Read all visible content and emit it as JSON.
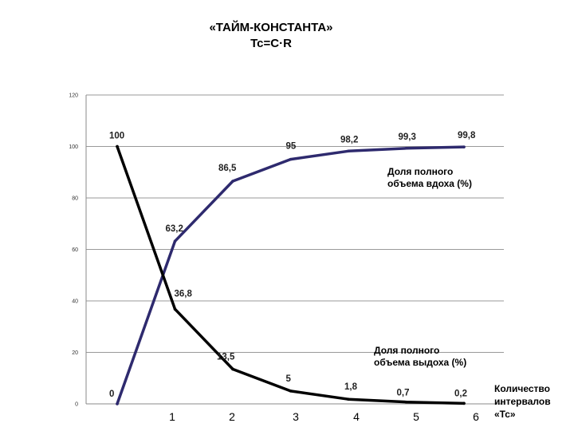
{
  "title": {
    "line1": "«ТАЙМ-КОНСТАНТА»",
    "line2": "Tc=C·R"
  },
  "legend": {
    "inhale_line1": "Доля полного",
    "inhale_line2": "объема вдоха (%)",
    "exhale_line1": "Доля полного",
    "exhale_line2": "объема выдоха (%)"
  },
  "x_axis_title": {
    "line1": "Количество",
    "line2": "интервалов",
    "line3": "«Тс»"
  },
  "chart_data": {
    "type": "line",
    "x": [
      0,
      1,
      2,
      3,
      4,
      5,
      6
    ],
    "x_tick_labels": [
      "1",
      "2",
      "3",
      "4",
      "5",
      "6"
    ],
    "y_ticks": [
      0,
      20,
      40,
      60,
      80,
      100,
      120
    ],
    "y_tick_labels": [
      "0",
      "20",
      "40",
      "60",
      "80",
      "100",
      "120"
    ],
    "ylim": [
      0,
      120
    ],
    "grid": true,
    "series": [
      {
        "name": "Доля полного объема вдоха (%)",
        "color": "#2e2a6e",
        "values": [
          0,
          63.2,
          86.5,
          95,
          98.2,
          99.3,
          99.8
        ],
        "labels": [
          "0",
          "63,2",
          "86,5",
          "95",
          "98,2",
          "99,3",
          "99,8"
        ]
      },
      {
        "name": "Доля полного объема выдоха (%)",
        "color": "#000000",
        "values": [
          100,
          36.8,
          13.5,
          5,
          1.8,
          0.7,
          0.2
        ],
        "labels": [
          "100",
          "36,8",
          "13,5",
          "5",
          "1,8",
          "0,7",
          "0,2"
        ]
      }
    ]
  }
}
